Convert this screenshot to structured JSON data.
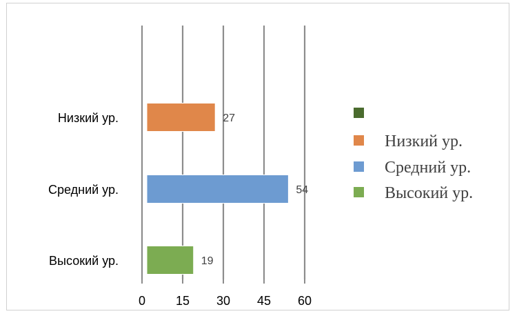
{
  "chart_data": {
    "type": "bar",
    "orientation": "horizontal",
    "categories": [
      "Низкий ур.",
      "Средний ур.",
      "Высокий ур."
    ],
    "values": [
      27,
      54,
      19
    ],
    "data_labels": [
      "27",
      "54",
      "19"
    ],
    "bar_colors": [
      "#e0874a",
      "#6d9bd1",
      "#7cac52"
    ],
    "xlim": [
      0,
      60
    ],
    "xticks": [
      "0",
      "15",
      "30",
      "45",
      "60"
    ],
    "grid": "vertical",
    "legend": {
      "placement": "right",
      "entries": [
        {
          "label": "",
          "color": "#4a6b2e"
        },
        {
          "label": "Низкий ур.",
          "color": "#e0874a"
        },
        {
          "label": "Средний ур.",
          "color": "#6d9bd1"
        },
        {
          "label": "Высокий ур.",
          "color": "#7cac52"
        }
      ]
    }
  }
}
